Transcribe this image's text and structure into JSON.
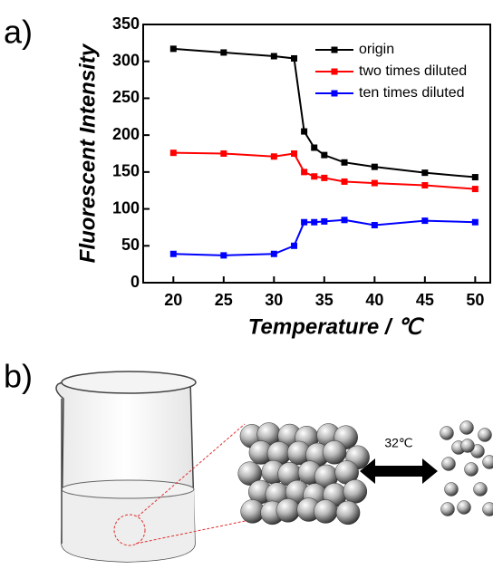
{
  "chart_data": {
    "type": "line",
    "panel_label": "a)",
    "x_label": "Temperature / ℃",
    "y_label": "Fluorescent Intensity",
    "x": [
      20,
      25,
      30,
      32,
      33,
      34,
      35,
      37,
      40,
      45,
      50
    ],
    "series": [
      {
        "name": "origin",
        "color": "#000000",
        "values": [
          317,
          312,
          307,
          304,
          205,
          183,
          173,
          163,
          157,
          149,
          143
        ]
      },
      {
        "name": "two times diluted",
        "color": "#ff0000",
        "values": [
          176,
          175,
          171,
          175,
          150,
          144,
          142,
          137,
          135,
          132,
          127
        ]
      },
      {
        "name": "ten times diluted",
        "color": "#0000ff",
        "values": [
          39,
          37,
          39,
          50,
          82,
          82,
          83,
          85,
          78,
          84,
          82
        ]
      }
    ],
    "xlim": [
      17,
      51.5
    ],
    "xticks": [
      20,
      25,
      30,
      35,
      40,
      45,
      50
    ],
    "ylim": [
      0,
      350
    ],
    "yticks": [
      0,
      50,
      100,
      150,
      200,
      250,
      300,
      350
    ],
    "legend": "upper right"
  },
  "diagram": {
    "panel_label": "b)",
    "arrow_label": "32℃"
  }
}
